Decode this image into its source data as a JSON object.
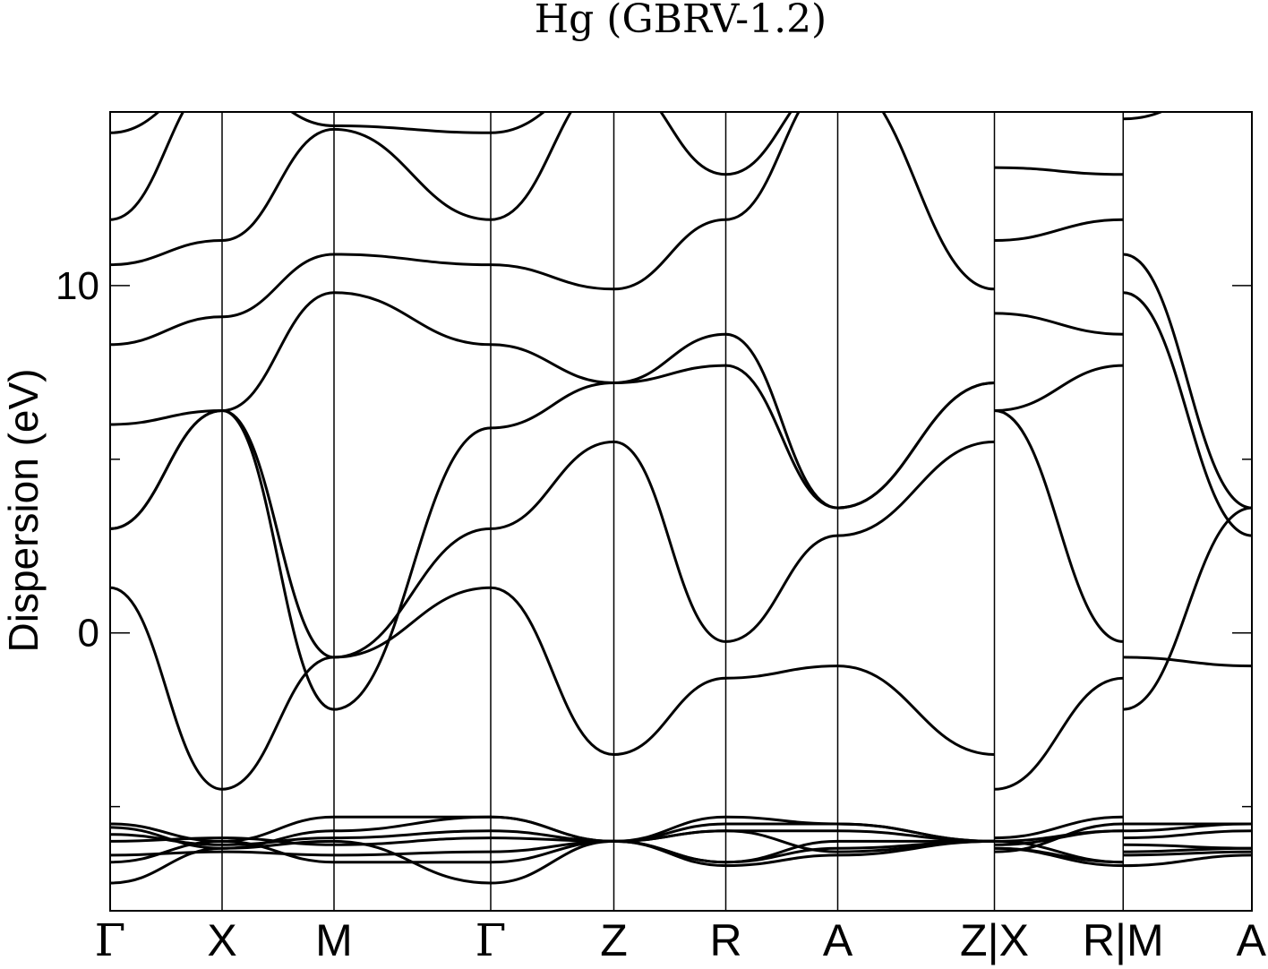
{
  "chart_data": {
    "type": "line",
    "title": "Hg (GBRV-1.2)",
    "ylabel": "Dispersion (eV)",
    "xlabel": "",
    "ylim": [
      -8,
      15
    ],
    "yticks_major": [
      0,
      10
    ],
    "yticks_minor": [
      -5,
      5
    ],
    "grid": false,
    "legend": "none",
    "line_color": "#000000",
    "kpath": [
      "Γ",
      "X",
      "M",
      "Γ",
      "Z",
      "R",
      "A",
      "Z|X",
      "R|M",
      "A"
    ],
    "kpoint_positions": [
      0,
      1,
      2,
      3.4,
      4.5,
      5.5,
      6.5,
      7.9,
      9.05,
      10.2
    ],
    "series": [
      {
        "x": [
          0,
          1,
          2,
          3.4,
          4.5,
          5.5,
          6.5,
          7.9,
          7.9,
          9.05,
          9.05,
          10.2
        ],
        "y": [
          1.3,
          -4.5,
          -0.7,
          1.3,
          -3.5,
          -1.3,
          -0.95,
          -3.5,
          -4.5,
          -1.3,
          -0.7,
          -0.95
        ]
      },
      {
        "x": [
          0,
          1,
          2,
          3.4,
          4.5,
          5.5,
          6.5,
          7.9,
          7.9,
          9.05,
          9.05,
          10.2
        ],
        "y": [
          3.0,
          6.4,
          -0.7,
          3.0,
          5.5,
          -0.25,
          2.8,
          5.5,
          6.4,
          -0.25,
          -2.2,
          3.6
        ]
      },
      {
        "x": [
          0,
          1,
          2,
          3.4,
          4.5,
          5.5,
          6.5,
          7.9,
          7.9,
          9.05,
          9.05,
          10.2
        ],
        "y": [
          3.0,
          6.4,
          -2.2,
          5.9,
          7.2,
          7.7,
          3.6,
          7.2,
          6.4,
          7.7,
          9.8,
          2.8
        ]
      },
      {
        "x": [
          0,
          1,
          2,
          3.4,
          4.5,
          5.5,
          6.5,
          7.9,
          7.9,
          9.05,
          9.05,
          10.2
        ],
        "y": [
          6.0,
          6.4,
          9.8,
          8.3,
          7.2,
          8.6,
          3.6,
          7.2,
          9.2,
          8.6,
          10.9,
          3.6
        ]
      },
      {
        "x": [
          0,
          1,
          2,
          3.4,
          4.5,
          5.5,
          6.5,
          7.9,
          7.9,
          9.05,
          9.05,
          10.2
        ],
        "y": [
          8.3,
          9.1,
          10.9,
          10.6,
          9.9,
          11.9,
          16.0,
          9.9,
          11.3,
          11.9,
          14.8,
          16.0
        ]
      },
      {
        "x": [
          0,
          1,
          2,
          3.4,
          4.5,
          5.5,
          6.5,
          7.9,
          7.9,
          9.05,
          9.05,
          10.2
        ],
        "y": [
          10.6,
          11.3,
          14.5,
          11.9,
          16.0,
          13.2,
          16.0,
          16.0,
          13.4,
          13.2,
          16.0,
          16.0
        ]
      },
      {
        "x": [
          0,
          1,
          2,
          3.4,
          4.5,
          5.5,
          6.5,
          7.9,
          7.9,
          9.05,
          9.05,
          10.2
        ],
        "y": [
          11.9,
          16.0,
          14.6,
          14.4,
          16.0,
          16.0,
          16.0,
          16.0,
          16.0,
          16.0,
          16.0,
          16.0
        ]
      },
      {
        "x": [
          0,
          1,
          2,
          3.4,
          4.5,
          5.5,
          6.5,
          7.9,
          7.9,
          9.05,
          9.05,
          10.2
        ],
        "y": [
          14.4,
          16.0,
          16.0,
          16.0,
          16.0,
          16.0,
          16.0,
          16.0,
          16.0,
          16.0,
          16.0,
          16.0
        ]
      },
      {
        "x": [
          0,
          1,
          2,
          3.4,
          4.5,
          5.5,
          6.5,
          7.9,
          7.9,
          9.05,
          9.05,
          10.2
        ],
        "y": [
          -5.5,
          -6.0,
          -5.3,
          -5.3,
          -6.0,
          -6.6,
          -6.2,
          -6.0,
          -6.0,
          -6.6,
          -6.3,
          -6.2
        ]
      },
      {
        "x": [
          0,
          1,
          2,
          3.4,
          4.5,
          5.5,
          6.5,
          7.9,
          7.9,
          9.05,
          9.05,
          10.2
        ],
        "y": [
          -5.6,
          -6.2,
          -5.7,
          -5.3,
          -6.0,
          -6.6,
          -6.0,
          -6.0,
          -6.2,
          -6.6,
          -6.1,
          -6.2
        ]
      },
      {
        "x": [
          0,
          1,
          2,
          3.4,
          4.5,
          5.5,
          6.5,
          7.9,
          7.9,
          9.05,
          9.05,
          10.2
        ],
        "y": [
          -5.8,
          -6.1,
          -5.9,
          -5.7,
          -6.0,
          -5.7,
          -5.7,
          -6.0,
          -6.1,
          -5.7,
          -5.9,
          -5.7
        ]
      },
      {
        "x": [
          0,
          1,
          2,
          3.4,
          4.5,
          5.5,
          6.5,
          7.9,
          7.9,
          9.05,
          9.05,
          10.2
        ],
        "y": [
          -6.0,
          -5.9,
          -6.1,
          -5.9,
          -6.0,
          -5.3,
          -5.5,
          -6.0,
          -5.9,
          -5.3,
          -5.7,
          -5.5
        ]
      },
      {
        "x": [
          0,
          1,
          2,
          3.4,
          4.5,
          5.5,
          6.5,
          7.9,
          7.9,
          9.05,
          9.05,
          10.2
        ],
        "y": [
          -6.4,
          -6.3,
          -6.4,
          -6.3,
          -6.0,
          -5.5,
          -5.5,
          -6.0,
          -6.3,
          -5.5,
          -5.5,
          -5.5
        ]
      },
      {
        "x": [
          0,
          1,
          2,
          3.4,
          4.5,
          5.5,
          6.5,
          7.9,
          7.9,
          9.05,
          9.05,
          10.2
        ],
        "y": [
          -6.6,
          -6.0,
          -6.6,
          -6.6,
          -6.0,
          -5.7,
          -6.3,
          -6.0,
          -6.0,
          -5.7,
          -6.4,
          -6.3
        ]
      },
      {
        "x": [
          0,
          1,
          2,
          3.4,
          4.5,
          5.5,
          6.5,
          7.9,
          7.9,
          9.05,
          9.05,
          10.2
        ],
        "y": [
          -7.2,
          -6.2,
          -6.0,
          -7.2,
          -6.0,
          -6.7,
          -6.4,
          -6.0,
          -6.2,
          -6.7,
          -6.7,
          -6.4
        ]
      }
    ]
  }
}
